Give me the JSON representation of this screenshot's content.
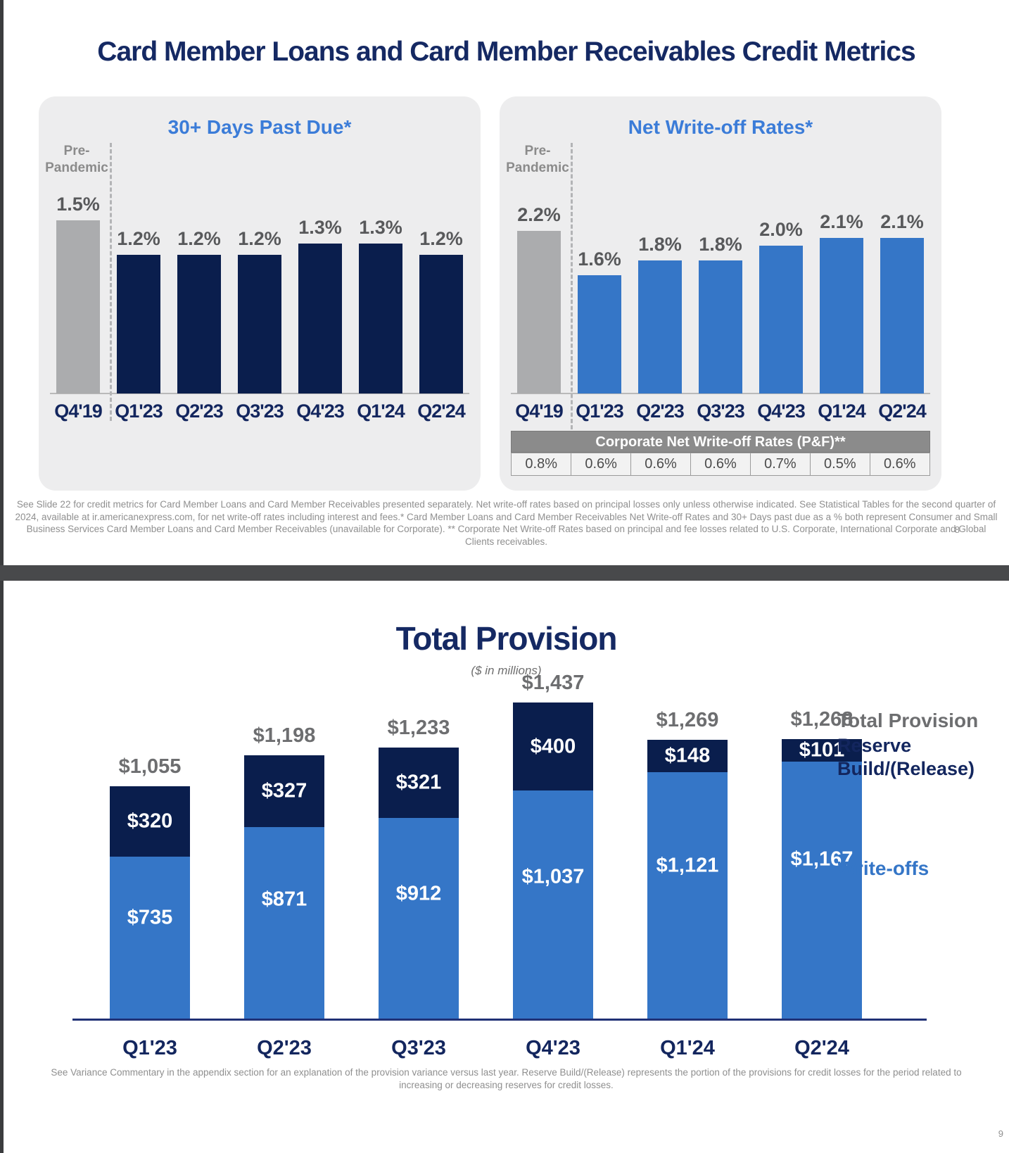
{
  "slide1": {
    "title": "Card Member Loans and Card Member Receivables Credit Metrics",
    "footnote": "See Slide 22 for credit metrics for Card Member Loans and Card Member Receivables presented separately. Net write-off rates based on principal losses only unless otherwise indicated. See Statistical Tables for the second quarter of 2024, available at ir.americanexpress.com, for net write-off rates including interest and fees.* Card Member Loans and Card Member Receivables Net Write-off Rates and 30+ Days past due as a % both represent Consumer and Small Business Services Card Member Loans and Card Member Receivables (unavailable for Corporate). ** Corporate Net Write-off Rates based on principal and fee losses related to U.S. Corporate, International Corporate and Global Clients receivables.",
    "page_number": "8"
  },
  "slide2": {
    "legend": {
      "total": "Total Provision",
      "reserve": "Reserve Build/(Release)",
      "writeoffs": "Write-offs"
    },
    "footnote": "See Variance Commentary in the appendix section for an explanation of the provision variance versus last year. Reserve Build/(Release) represents the portion of the provisions for credit losses for the period related to increasing or decreasing reserves for credit losses.",
    "page_number": "9"
  },
  "colors": {
    "navy_bar": "#0a1e4d",
    "blue_bar": "#3576c7",
    "gray_bar": "#abacae",
    "title_navy": "#152963",
    "chart_title_blue": "#3b7cd8",
    "value_label_gray": "#58595b",
    "panel_background": "#ededee",
    "table_header_gray": "#8b8b8b"
  },
  "chart_data": [
    {
      "id": "days-past-due",
      "type": "bar",
      "title": "30+ Days Past Due*",
      "annotation_lines": [
        "Pre-",
        "Pandemic"
      ],
      "categories": [
        "Q4'19",
        "Q1'23",
        "Q2'23",
        "Q3'23",
        "Q4'23",
        "Q1'24",
        "Q2'24"
      ],
      "values": [
        1.5,
        1.2,
        1.2,
        1.2,
        1.3,
        1.3,
        1.2
      ],
      "labels": [
        "1.5%",
        "1.2%",
        "1.2%",
        "1.2%",
        "1.3%",
        "1.3%",
        "1.2%"
      ],
      "unit": "%",
      "first_bar_style": "gray-pre-pandemic",
      "bar_color": "navy",
      "ylim": [
        0,
        2.6
      ],
      "grid": false
    },
    {
      "id": "net-write-off-rates",
      "type": "bar",
      "title": "Net Write-off Rates*",
      "annotation_lines": [
        "Pre-",
        "Pandemic"
      ],
      "categories": [
        "Q4'19",
        "Q1'23",
        "Q2'23",
        "Q3'23",
        "Q4'23",
        "Q1'24",
        "Q2'24"
      ],
      "values": [
        2.2,
        1.6,
        1.8,
        1.8,
        2.0,
        2.1,
        2.1
      ],
      "labels": [
        "2.2%",
        "1.6%",
        "1.8%",
        "1.8%",
        "2.0%",
        "2.1%",
        "2.1%"
      ],
      "unit": "%",
      "first_bar_style": "gray-pre-pandemic",
      "bar_color": "blue",
      "ylim": [
        0,
        4.0
      ],
      "grid": false
    },
    {
      "id": "corporate-net-write-off",
      "type": "table",
      "title": "Corporate Net Write-off Rates (P&F)**",
      "categories": [
        "Q4'19",
        "Q1'23",
        "Q2'23",
        "Q3'23",
        "Q4'23",
        "Q1'24",
        "Q2'24"
      ],
      "values": [
        "0.8%",
        "0.6%",
        "0.6%",
        "0.6%",
        "0.7%",
        "0.5%",
        "0.6%"
      ]
    },
    {
      "id": "total-provision",
      "type": "bar",
      "stacked": true,
      "title": "Total Provision",
      "subtitle": "($ in millions)",
      "categories": [
        "Q1'23",
        "Q2'23",
        "Q3'23",
        "Q4'23",
        "Q1'24",
        "Q2'24"
      ],
      "series": [
        {
          "name": "Write-offs",
          "values": [
            735,
            871,
            912,
            1037,
            1121,
            1167
          ],
          "labels": [
            "$735",
            "$871",
            "$912",
            "$1,037",
            "$1,121",
            "$1,167"
          ]
        },
        {
          "name": "Reserve Build/(Release)",
          "values": [
            320,
            327,
            321,
            400,
            148,
            101
          ],
          "labels": [
            "$320",
            "$327",
            "$321",
            "$400",
            "$148",
            "$101"
          ]
        }
      ],
      "totals": [
        1055,
        1198,
        1233,
        1437,
        1269,
        1268
      ],
      "total_labels": [
        "$1,055",
        "$1,198",
        "$1,233",
        "$1,437",
        "$1,269",
        "$1,268"
      ],
      "legend_position": "right",
      "grid": false
    }
  ]
}
